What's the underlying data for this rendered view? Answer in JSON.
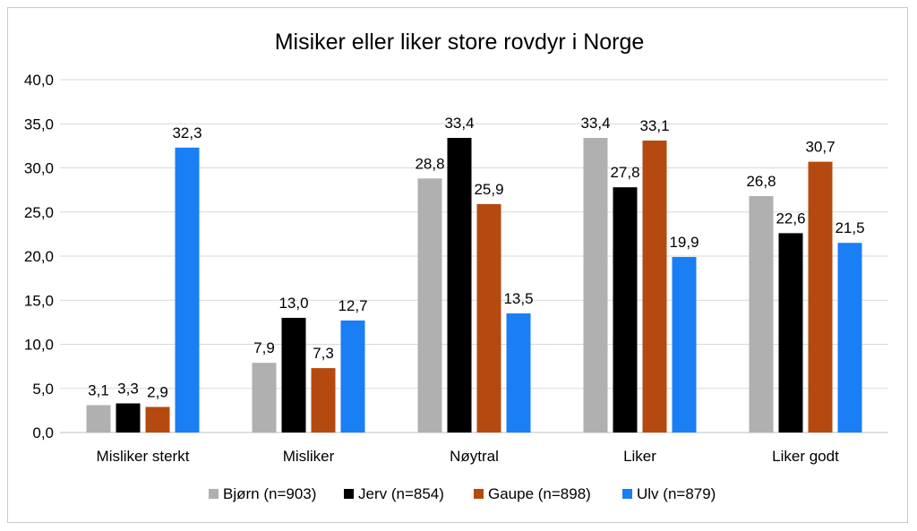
{
  "chart_data": {
    "type": "bar",
    "title": "Misiker eller liker store rovdyr i Norge",
    "xlabel": "",
    "ylabel": "",
    "ylim": [
      0,
      40
    ],
    "yticks": [
      "0,0",
      "5,0",
      "10,0",
      "15,0",
      "20,0",
      "25,0",
      "30,0",
      "35,0",
      "40,0"
    ],
    "grid": true,
    "legend_position": "bottom",
    "categories": [
      "Misliker sterkt",
      "Misliker",
      "Nøytral",
      "Liker",
      "Liker godt"
    ],
    "series": [
      {
        "name": "Bjørn (n=903)",
        "color": "#afb0af",
        "values": [
          3.1,
          7.9,
          28.8,
          33.4,
          26.8
        ],
        "labels": [
          "3,1",
          "7,9",
          "28,8",
          "33,4",
          "26,8"
        ]
      },
      {
        "name": "Jerv (n=854)",
        "color": "#000000",
        "values": [
          3.3,
          13.0,
          33.4,
          27.8,
          22.6
        ],
        "labels": [
          "3,3",
          "13,0",
          "33,4",
          "27,8",
          "22,6"
        ]
      },
      {
        "name": "Gaupe (n=898)",
        "color": "#b54a10",
        "values": [
          2.9,
          7.3,
          25.9,
          33.1,
          30.7
        ],
        "labels": [
          "2,9",
          "7,3",
          "25,9",
          "33,1",
          "30,7"
        ]
      },
      {
        "name": "Ulv (n=879)",
        "color": "#1a7ef5",
        "values": [
          32.3,
          12.7,
          13.5,
          19.9,
          21.5
        ],
        "labels": [
          "32,3",
          "12,7",
          "13,5",
          "19,9",
          "21,5"
        ]
      }
    ]
  }
}
